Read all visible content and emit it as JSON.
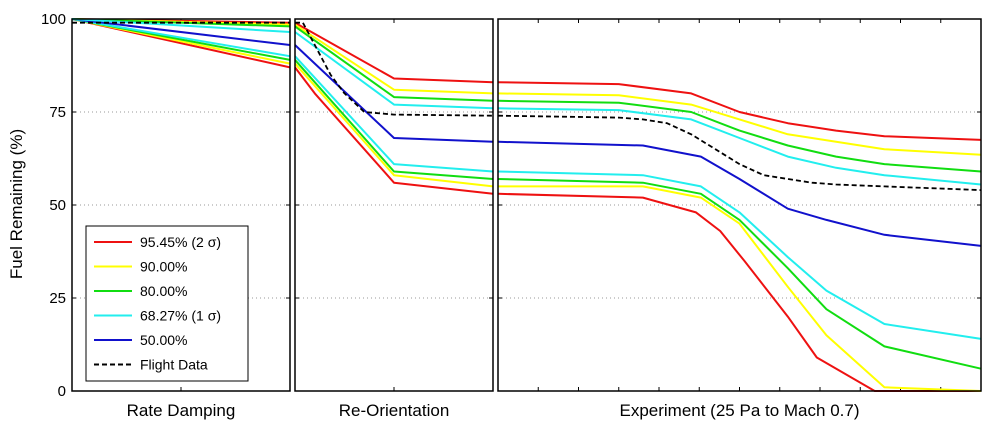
{
  "chart_data": {
    "type": "line",
    "ylabel": "Fuel Remaining (%)",
    "ylim": [
      0,
      100
    ],
    "yticks": [
      "0",
      "25",
      "50",
      "75",
      "100"
    ],
    "grid": "horizontal dotted",
    "legend_placement": "bottom-left",
    "panels": [
      {
        "title": "Rate Damping",
        "xlim": [
          0,
          1
        ]
      },
      {
        "title": "Re-Orientation",
        "xlim": [
          0,
          1
        ]
      },
      {
        "title": "Experiment (25 Pa to Mach 0.7)",
        "xlim": [
          0,
          1
        ]
      }
    ],
    "series": [
      {
        "name": "95.45% (2 σ)",
        "color": "#ee1111",
        "dash": false,
        "panels": [
          [
            [
              0,
              100
            ],
            [
              1,
              87
            ]
          ],
          [
            [
              0,
              87
            ],
            [
              0.1,
              80
            ],
            [
              0.5,
              56
            ],
            [
              1,
              53
            ]
          ],
          [
            [
              0,
              53
            ],
            [
              0.3,
              52
            ],
            [
              0.41,
              48
            ],
            [
              0.46,
              43
            ],
            [
              0.51,
              35
            ],
            [
              0.6,
              20
            ],
            [
              0.66,
              9
            ],
            [
              0.78,
              0
            ],
            [
              1,
              0
            ]
          ]
        ]
      },
      {
        "name": "90.00%",
        "color": "#ffff00",
        "dash": false,
        "panels": [
          [
            [
              0,
              100
            ],
            [
              1,
              88
            ]
          ],
          [
            [
              0,
              88
            ],
            [
              0.5,
              58
            ],
            [
              1,
              55
            ]
          ],
          [
            [
              0,
              55
            ],
            [
              0.3,
              55
            ],
            [
              0.42,
              52
            ],
            [
              0.5,
              45
            ],
            [
              0.6,
              28
            ],
            [
              0.68,
              15
            ],
            [
              0.8,
              1
            ],
            [
              1,
              0
            ]
          ]
        ]
      },
      {
        "name": "80.00%",
        "color": "#11dd11",
        "dash": false,
        "panels": [
          [
            [
              0,
              100
            ],
            [
              1,
              89
            ]
          ],
          [
            [
              0,
              89
            ],
            [
              0.5,
              59
            ],
            [
              1,
              57
            ]
          ],
          [
            [
              0,
              57
            ],
            [
              0.3,
              56
            ],
            [
              0.42,
              53
            ],
            [
              0.5,
              46
            ],
            [
              0.6,
              33
            ],
            [
              0.68,
              22
            ],
            [
              0.8,
              12
            ],
            [
              1,
              6
            ]
          ]
        ]
      },
      {
        "name": "68.27% (1 σ)",
        "color": "#22eeee",
        "dash": false,
        "panels": [
          [
            [
              0,
              100
            ],
            [
              1,
              90
            ]
          ],
          [
            [
              0,
              90
            ],
            [
              0.5,
              61
            ],
            [
              1,
              59
            ]
          ],
          [
            [
              0,
              59
            ],
            [
              0.3,
              58
            ],
            [
              0.42,
              55
            ],
            [
              0.5,
              48
            ],
            [
              0.6,
              36
            ],
            [
              0.68,
              27
            ],
            [
              0.8,
              18
            ],
            [
              1,
              14
            ]
          ]
        ]
      },
      {
        "name": "50.00%",
        "color": "#1111cc",
        "dash": false,
        "panels": [
          [
            [
              0,
              100
            ],
            [
              1,
              93
            ]
          ],
          [
            [
              0,
              93
            ],
            [
              0.5,
              68
            ],
            [
              1,
              67
            ]
          ],
          [
            [
              0,
              67
            ],
            [
              0.3,
              66
            ],
            [
              0.42,
              63
            ],
            [
              0.5,
              57
            ],
            [
              0.6,
              49
            ],
            [
              0.68,
              46
            ],
            [
              0.8,
              42
            ],
            [
              1,
              39
            ]
          ]
        ]
      },
      {
        "name": "",
        "color": "#ee1111",
        "dash": false,
        "panels": [
          [
            [
              0,
              100
            ],
            [
              1,
              99
            ]
          ],
          [
            [
              0,
              99
            ],
            [
              0.5,
              84
            ],
            [
              1,
              83
            ]
          ],
          [
            [
              0,
              83
            ],
            [
              0.25,
              82.5
            ],
            [
              0.4,
              80
            ],
            [
              0.5,
              75
            ],
            [
              0.6,
              72
            ],
            [
              0.7,
              70
            ],
            [
              0.8,
              68.5
            ],
            [
              1,
              67.5
            ]
          ]
        ]
      },
      {
        "name": "",
        "color": "#ffff00",
        "dash": false,
        "panels": [
          [
            [
              0,
              100
            ],
            [
              1,
              98.5
            ]
          ],
          [
            [
              0,
              98.5
            ],
            [
              0.5,
              81
            ],
            [
              1,
              80
            ]
          ],
          [
            [
              0,
              80
            ],
            [
              0.25,
              79.5
            ],
            [
              0.4,
              77
            ],
            [
              0.5,
              73
            ],
            [
              0.6,
              69
            ],
            [
              0.7,
              67
            ],
            [
              0.8,
              65
            ],
            [
              1,
              63.5
            ]
          ]
        ]
      },
      {
        "name": "",
        "color": "#11dd11",
        "dash": false,
        "panels": [
          [
            [
              0,
              100
            ],
            [
              1,
              98
            ]
          ],
          [
            [
              0,
              98
            ],
            [
              0.5,
              79
            ],
            [
              1,
              78
            ]
          ],
          [
            [
              0,
              78
            ],
            [
              0.25,
              77.5
            ],
            [
              0.4,
              75
            ],
            [
              0.5,
              70
            ],
            [
              0.6,
              66
            ],
            [
              0.7,
              63
            ],
            [
              0.8,
              61
            ],
            [
              1,
              59
            ]
          ]
        ]
      },
      {
        "name": "",
        "color": "#22eeee",
        "dash": false,
        "panels": [
          [
            [
              0,
              100
            ],
            [
              1,
              96.5
            ]
          ],
          [
            [
              0,
              96.5
            ],
            [
              0.5,
              77
            ],
            [
              1,
              76
            ]
          ],
          [
            [
              0,
              76
            ],
            [
              0.25,
              75.5
            ],
            [
              0.4,
              73
            ],
            [
              0.5,
              68
            ],
            [
              0.6,
              63
            ],
            [
              0.7,
              60
            ],
            [
              0.8,
              58
            ],
            [
              1,
              55.5
            ]
          ]
        ]
      },
      {
        "name": "Flight Data",
        "color": "#000000",
        "dash": true,
        "panels": [
          [
            [
              0,
              99
            ],
            [
              1,
              99
            ]
          ],
          [
            [
              0,
              99
            ],
            [
              0.04,
              99
            ],
            [
              0.06,
              97
            ],
            [
              0.1,
              93
            ],
            [
              0.18,
              85
            ],
            [
              0.25,
              80
            ],
            [
              0.35,
              75
            ],
            [
              0.5,
              74.3
            ],
            [
              1,
              74
            ]
          ],
          [
            [
              0,
              74
            ],
            [
              0.25,
              73.5
            ],
            [
              0.3,
              73
            ],
            [
              0.35,
              72
            ],
            [
              0.4,
              69
            ],
            [
              0.45,
              65
            ],
            [
              0.5,
              61
            ],
            [
              0.55,
              58
            ],
            [
              0.6,
              57
            ],
            [
              0.65,
              56
            ],
            [
              0.7,
              55.5
            ],
            [
              0.8,
              55
            ],
            [
              1,
              54
            ]
          ]
        ]
      }
    ]
  }
}
